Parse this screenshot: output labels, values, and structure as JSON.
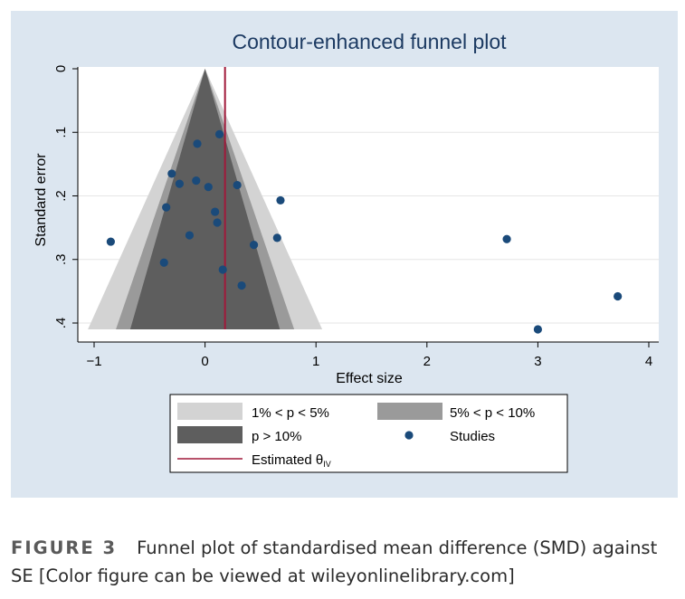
{
  "chart_data": {
    "type": "scatter",
    "title": "Contour-enhanced funnel plot",
    "xlabel": "Effect size",
    "ylabel": "Standard error",
    "xlim": [
      -1.03,
      4.1
    ],
    "ylim": [
      0,
      0.41
    ],
    "y_reversed": true,
    "x_ticks": [
      -1,
      0,
      1,
      2,
      3,
      4
    ],
    "x_tick_labels": [
      "−1",
      "0",
      "1",
      "2",
      "3",
      "4"
    ],
    "y_ticks": [
      0,
      0.1,
      0.2,
      0.3,
      0.4
    ],
    "y_tick_labels": [
      "0",
      ".1",
      ".2",
      ".3",
      ".4"
    ],
    "estimated_theta": 0.18,
    "contours": [
      {
        "name": "1% < p < 5%",
        "z_inner": 1.96,
        "z_outer": 2.576,
        "color": "#d3d3d3"
      },
      {
        "name": "5% < p < 10%",
        "z_inner": 1.645,
        "z_outer": 1.96,
        "color": "#9a9a9a"
      },
      {
        "name": "p > 10%",
        "z_inner": 0,
        "z_outer": 1.645,
        "color": "#5e5e5e"
      }
    ],
    "estimated_line": {
      "name": "Estimated θ",
      "subscript": "IV",
      "color": "#a0193a"
    },
    "studies": {
      "name": "Studies",
      "color": "#1a4a7a",
      "points": [
        {
          "x": 0.13,
          "y": 0.103
        },
        {
          "x": -0.07,
          "y": 0.118
        },
        {
          "x": -0.3,
          "y": 0.165
        },
        {
          "x": -0.23,
          "y": 0.181
        },
        {
          "x": -0.08,
          "y": 0.176
        },
        {
          "x": 0.03,
          "y": 0.186
        },
        {
          "x": 0.29,
          "y": 0.183
        },
        {
          "x": 0.68,
          "y": 0.207
        },
        {
          "x": -0.35,
          "y": 0.218
        },
        {
          "x": 0.09,
          "y": 0.225
        },
        {
          "x": 0.11,
          "y": 0.242
        },
        {
          "x": -0.14,
          "y": 0.262
        },
        {
          "x": 0.65,
          "y": 0.266
        },
        {
          "x": 0.44,
          "y": 0.277
        },
        {
          "x": -0.85,
          "y": 0.272
        },
        {
          "x": 2.72,
          "y": 0.268
        },
        {
          "x": -0.37,
          "y": 0.305
        },
        {
          "x": 0.16,
          "y": 0.316
        },
        {
          "x": 0.33,
          "y": 0.341
        },
        {
          "x": 3.72,
          "y": 0.358
        },
        {
          "x": 3.0,
          "y": 0.41
        }
      ]
    }
  },
  "caption": {
    "label": "FIGURE 3",
    "text": "Funnel plot of standardised mean difference (SMD) against SE [Color figure can be viewed at wileyonlinelibrary.com]"
  },
  "colors": {
    "panel_bg": "#dce6f0",
    "plot_bg": "#ffffff",
    "title_color": "#1c3a62"
  }
}
